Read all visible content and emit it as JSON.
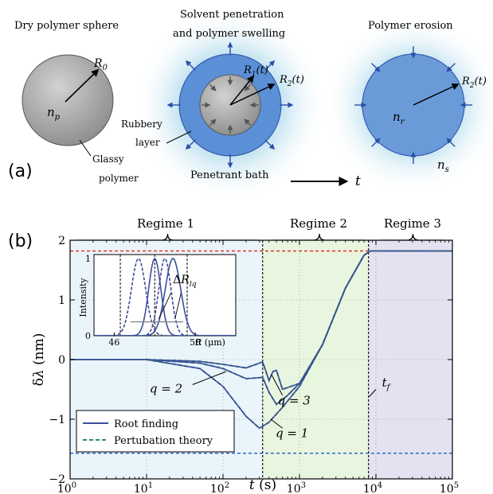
{
  "panel_a": {
    "label": "(a)",
    "titles": {
      "dry": "Dry polymer sphere",
      "swell_1": "Solvent penetration",
      "swell_2": "and polymer swelling",
      "erosion": "Polymer erosion"
    },
    "labels": {
      "R0": "R",
      "R0_sub": "0",
      "np": "n",
      "np_sub": "p",
      "glassy_1": "Glassy",
      "glassy_2": "polymer",
      "R1": "R",
      "R1_sub": "1",
      "R1_tail": "(t)",
      "R2": "R",
      "R2_sub": "2",
      "R2_tail": "(t)",
      "rubbery_1": "Rubbery",
      "rubbery_2": "layer",
      "bath": "Penetrant bath",
      "time_axis": "t",
      "nr": "n",
      "nr_sub": "r",
      "ns": "n",
      "ns_sub": "s",
      "R2b": "R",
      "R2b_sub": "2",
      "R2b_tail": "(t)"
    },
    "colors": {
      "glassy": "#a6a6a6",
      "rubbery": "#5b8fd6",
      "bath": "#cfe8f3",
      "arrow": "#2a4fa8"
    }
  },
  "panel_b": {
    "label": "(b)",
    "regimes": [
      "Regime 1",
      "Regime 2",
      "Regime 3"
    ],
    "curve_labels": [
      "q = 3",
      "q = 2",
      "q = 1"
    ],
    "tf_label": "t",
    "tf_sub": "f",
    "legend": [
      "Root finding",
      "Pertubation theory"
    ],
    "colors": {
      "root": "#3b4f9c",
      "pert": "#2e8b57",
      "red_line": "#e03030",
      "blue_line": "#3366cc",
      "regime1_bg": "#eaf5fb",
      "regime2_bg": "#e9f6df",
      "regime3_bg": "#e3e2f0"
    }
  },
  "chart_data": [
    {
      "type": "line",
      "xlabel": "t (s)",
      "ylabel": "δλ (nm)",
      "xscale": "log",
      "xlim": [
        1,
        100000
      ],
      "ylim": [
        -2,
        2
      ],
      "xticks": [
        "10^0",
        "10^1",
        "10^2",
        "10^3",
        "10^4",
        "10^5"
      ],
      "yticks": [
        "−2",
        "−1",
        "0",
        "1",
        "2"
      ],
      "grid": true,
      "legend_position": "bottom-left",
      "hlines": [
        1.82,
        -1.57
      ],
      "vlines": [
        330,
        8000
      ],
      "series": [
        {
          "name": "Root finding",
          "group": "q = 1",
          "x": [
            1,
            10,
            50,
            100,
            200,
            300,
            400,
            600,
            1000,
            2000,
            4000,
            7000,
            8500,
            100000
          ],
          "y": [
            0,
            0,
            -0.15,
            -0.45,
            -0.95,
            -1.15,
            -1.05,
            -0.8,
            -0.45,
            0.25,
            1.2,
            1.75,
            1.82,
            1.82
          ]
        },
        {
          "name": "Root finding",
          "group": "q = 2",
          "x": [
            1,
            10,
            50,
            100,
            200,
            330,
            400,
            500,
            700,
            1000,
            2000,
            4000,
            7000,
            8500,
            100000
          ],
          "y": [
            0,
            0,
            -0.06,
            -0.15,
            -0.32,
            -0.3,
            -0.55,
            -0.75,
            -0.6,
            -0.4,
            0.25,
            1.2,
            1.75,
            1.82,
            1.82
          ]
        },
        {
          "name": "Root finding",
          "group": "q = 3",
          "x": [
            1,
            10,
            50,
            100,
            200,
            330,
            400,
            450,
            500,
            600,
            1000,
            2000,
            4000,
            7000,
            8500,
            100000
          ],
          "y": [
            0,
            0,
            -0.03,
            -0.08,
            -0.14,
            -0.04,
            -0.35,
            -0.2,
            -0.18,
            -0.5,
            -0.4,
            0.25,
            1.2,
            1.75,
            1.82,
            1.82
          ]
        }
      ],
      "curve_labels": [
        {
          "text": "q = 3",
          "x": 850,
          "y": -0.75
        },
        {
          "text": "q = 2",
          "x": 18,
          "y": -0.55
        },
        {
          "text": "q = 1",
          "x": 800,
          "y": -1.3
        }
      ],
      "tf_marker": {
        "label": "t_f",
        "x": 12000,
        "y": -0.45
      }
    },
    {
      "type": "line",
      "inset": true,
      "xlabel": "R (μm)",
      "ylabel": "Intensity",
      "xlim": [
        45,
        52
      ],
      "ylim": [
        0,
        1.05
      ],
      "xticks": [
        "46",
        "50"
      ],
      "yticks": [
        "0",
        "1"
      ],
      "annotation": "ΔR_lq",
      "series": [
        {
          "name": "Root finding",
          "x": [
            47.5,
            48.2,
            48.9,
            49.6,
            50.3
          ],
          "y": [
            0,
            0.2,
            1.0,
            0.2,
            0
          ]
        },
        {
          "name": "Pertubation theory",
          "x": [
            46.0,
            46.6,
            47.2,
            47.8,
            48.4
          ],
          "y": [
            0,
            0.2,
            1.0,
            0.2,
            0
          ]
        }
      ]
    }
  ]
}
